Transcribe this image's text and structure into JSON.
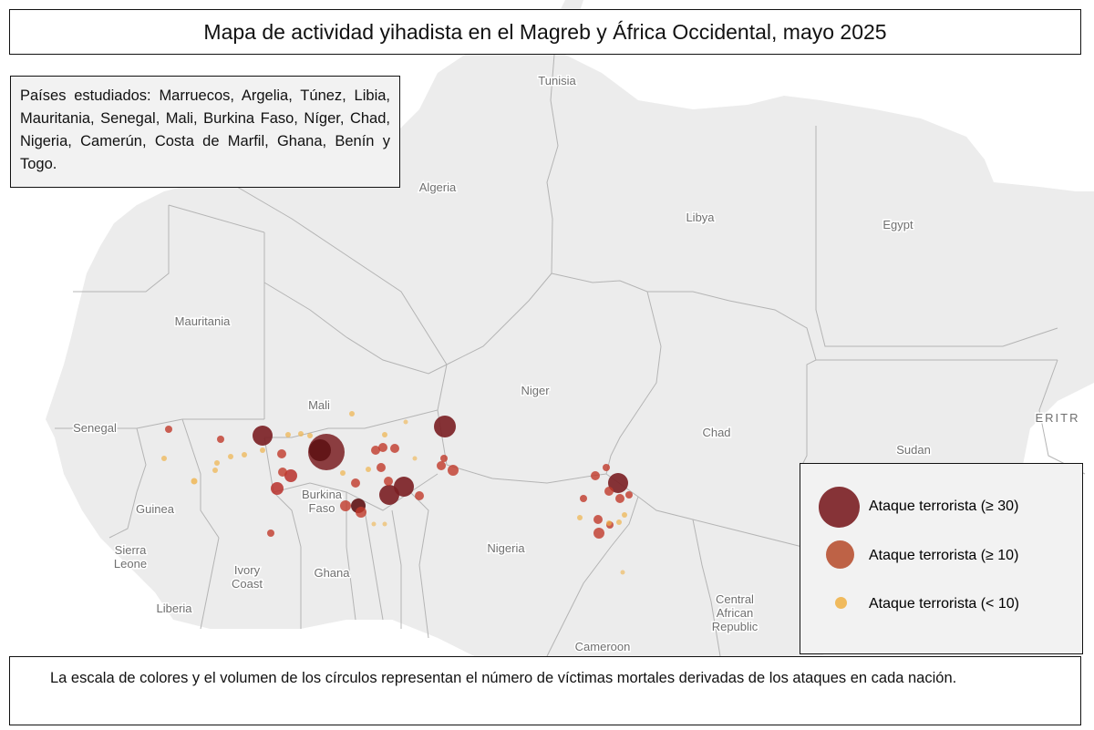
{
  "title": "Mapa de actividad yihadista en el Magreb y África Occidental, mayo 2025",
  "countries_note": "Países estudiados: Marruecos, Argelia, Túnez, Libia, Mauritania, Senegal, Mali, Burkina Faso, Níger, Chad, Nigeria, Camerún, Costa de Marfil, Ghana, Benín y Togo.",
  "legend": {
    "items": [
      {
        "label": "Ataque terrorista (≥ 30)",
        "color": "#7a1e22"
      },
      {
        "label": "Ataque terrorista (≥ 10)",
        "color": "#b85233"
      },
      {
        "label": "Ataque terrorista (< 10)",
        "color": "#f0b44c"
      }
    ]
  },
  "footnote": "La escala de colores y el volumen de los círculos representan el número de víctimas mortales derivadas de los ataques en cada nación.",
  "map": {
    "land_color": "#ececec",
    "border_color": "#b4b4b4",
    "labels": [
      "Tunisia",
      "Algeria",
      "Libya",
      "Egypt",
      "Mauritania",
      "Mali",
      "Niger",
      "Chad",
      "Sudan",
      "ERITR",
      "Senegal",
      "Guinea",
      "Sierra Leone",
      "Liberia",
      "Ivory Coast",
      "Ghana",
      "Burkina Faso",
      "Nigeria",
      "Cameroon",
      "Central African Republic"
    ]
  }
}
